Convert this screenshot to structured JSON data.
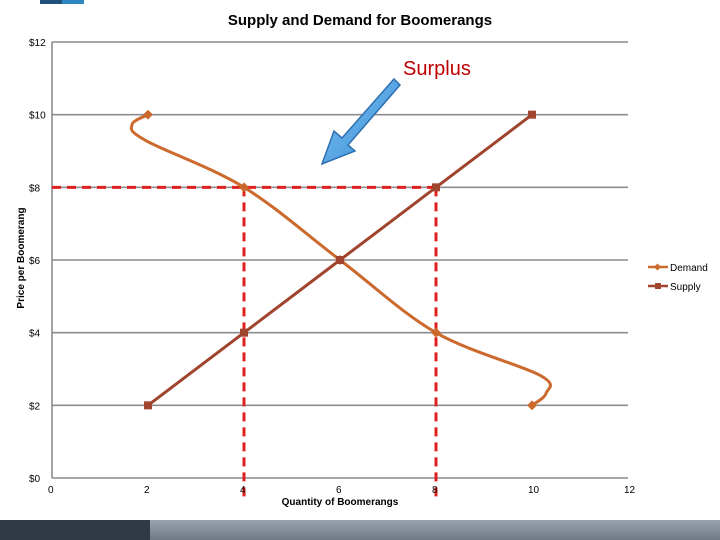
{
  "chart_data": {
    "type": "line",
    "title": "Supply and Demand for Boomerangs",
    "xlabel": "Quantity of Boomerangs",
    "ylabel": "Price per Boomerang",
    "xlim": [
      0,
      12
    ],
    "ylim": [
      0,
      12
    ],
    "x_ticks": [
      "0",
      "2",
      "4",
      "6",
      "8",
      "10",
      "12"
    ],
    "y_ticks": [
      "$0",
      "$2",
      "$4",
      "$6",
      "$8",
      "$10",
      "$12"
    ],
    "grid": true,
    "legend_position": "right",
    "series": [
      {
        "name": "Demand",
        "color": "#cc6a2e",
        "points": [
          [
            2,
            10
          ],
          [
            4,
            8
          ],
          [
            6,
            6
          ],
          [
            8,
            4
          ],
          [
            10,
            2
          ]
        ]
      },
      {
        "name": "Supply",
        "color": "#a0442e",
        "points": [
          [
            2,
            2
          ],
          [
            4,
            4
          ],
          [
            6,
            6
          ],
          [
            8,
            8
          ],
          [
            10,
            10
          ]
        ]
      }
    ],
    "annotations": [
      {
        "text": "Surplus",
        "color": "#c00000"
      }
    ],
    "reference_lines": {
      "price_level": 8,
      "quantities": [
        4,
        8
      ],
      "color": "#e02020"
    }
  }
}
